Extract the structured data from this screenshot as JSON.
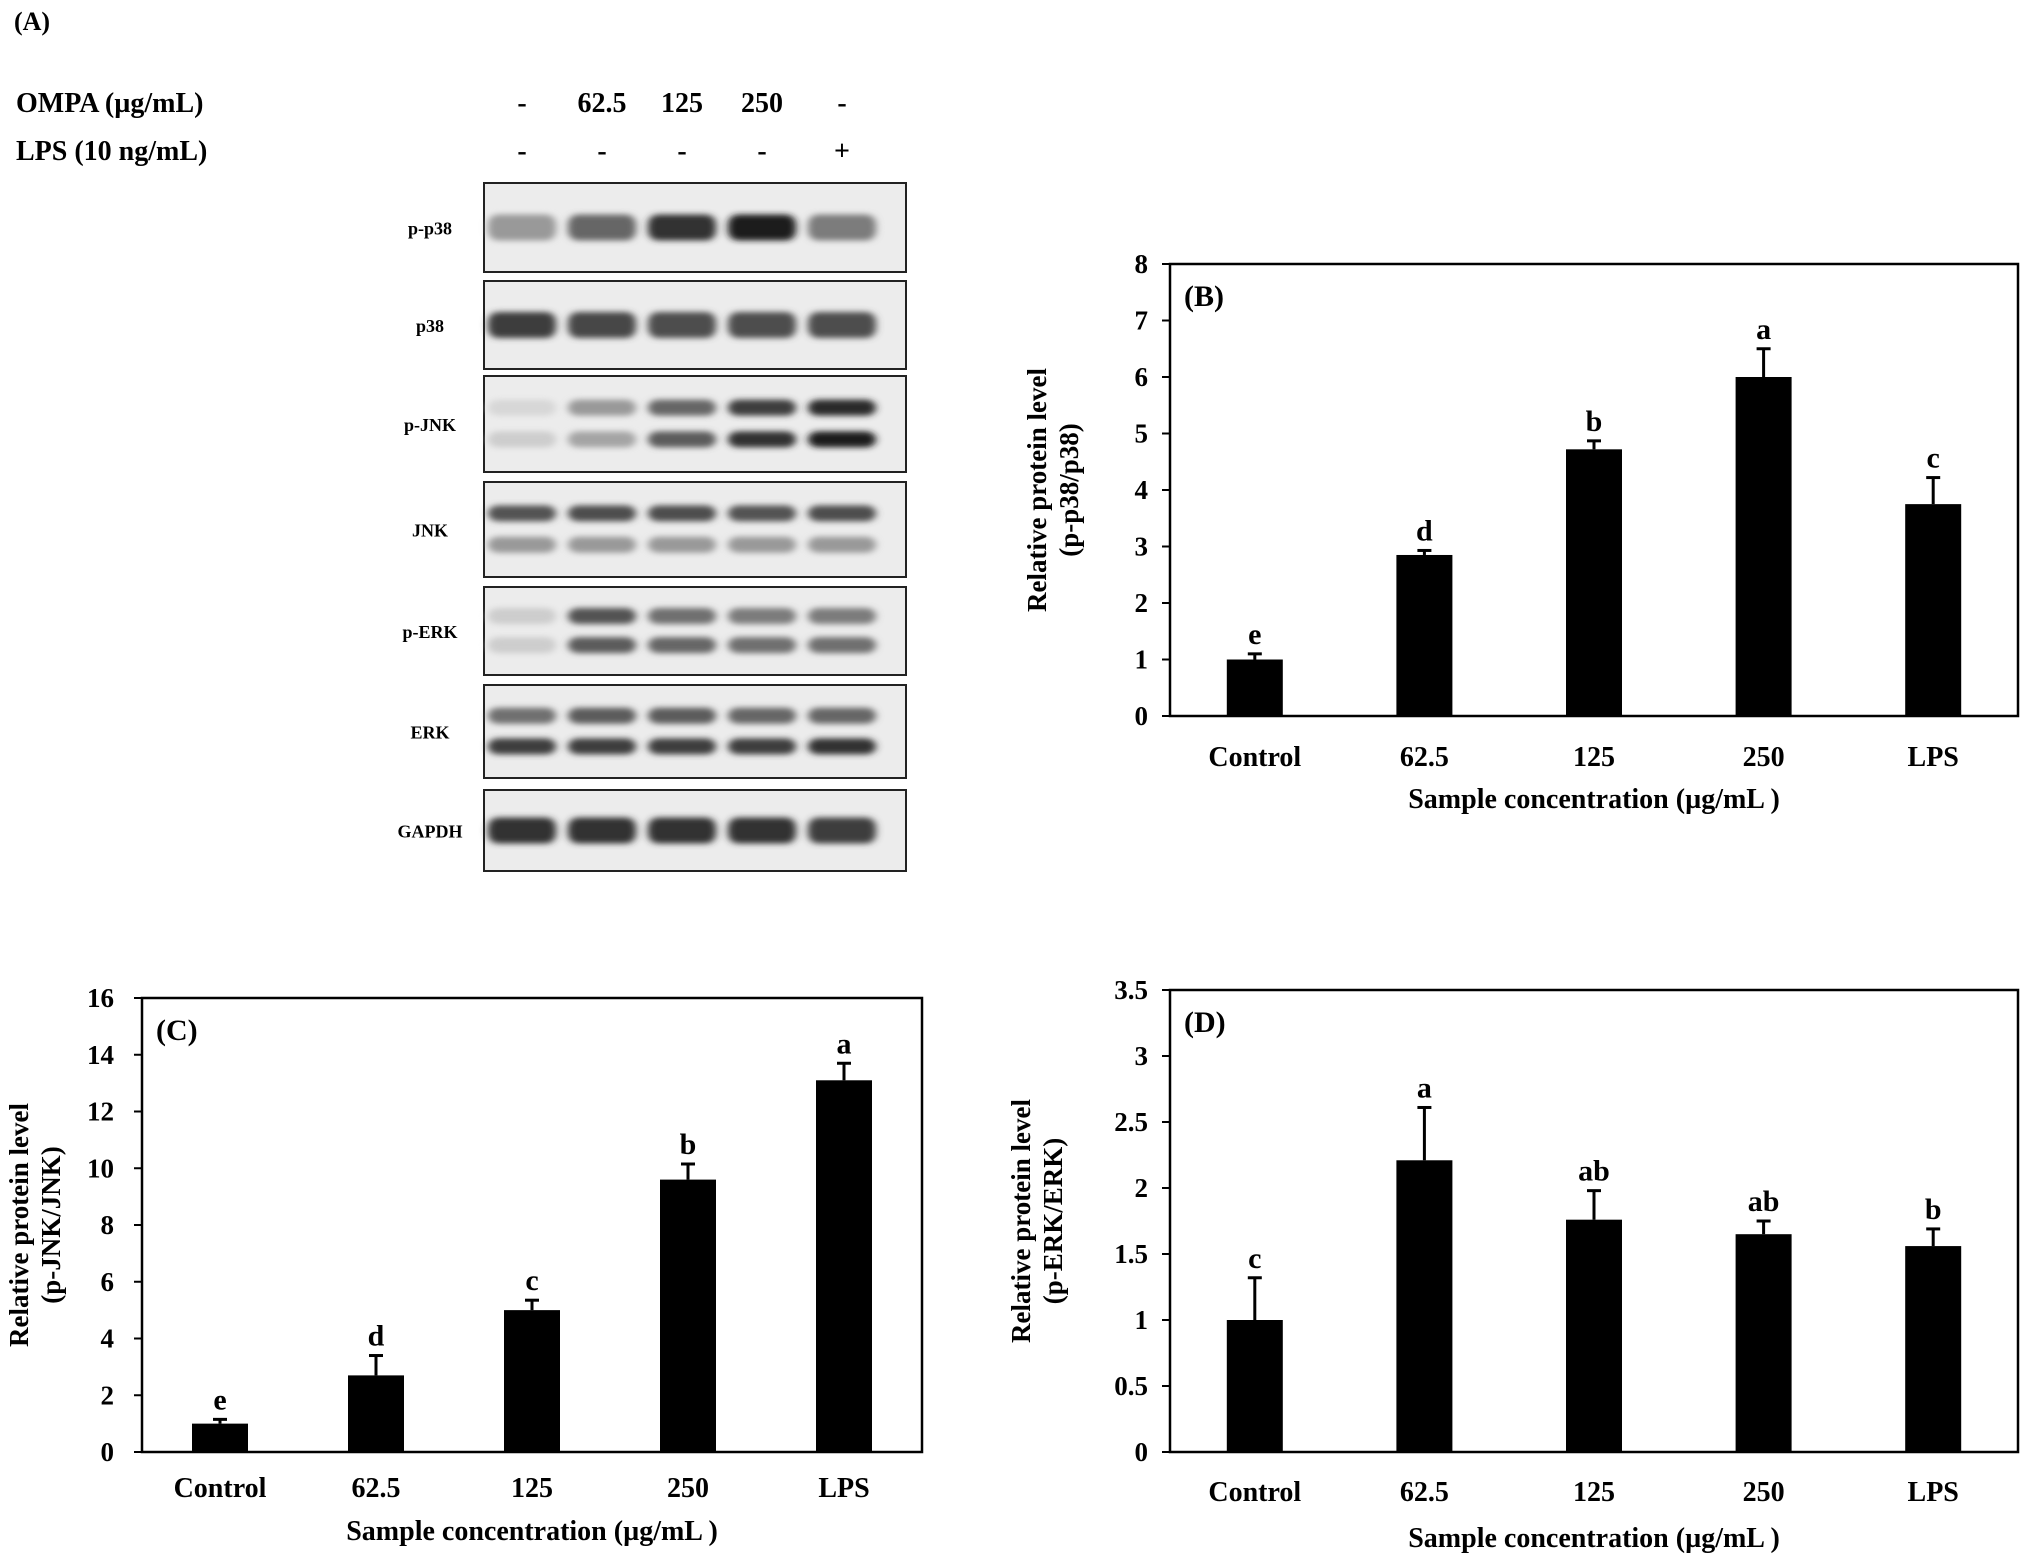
{
  "panel_a": {
    "label": "(A)",
    "row_labels": [
      "OMPA (µg/mL)",
      "LPS (10 ng/mL)"
    ],
    "ompa_values": [
      "-",
      "62.5",
      "125",
      "250",
      "-"
    ],
    "lps_values": [
      "-",
      "-",
      "-",
      "-",
      "+"
    ],
    "blots": [
      {
        "name": "p-p38",
        "bands": [
          [
            0.35,
            0.6,
            0.85,
            0.95,
            0.5
          ]
        ]
      },
      {
        "name": "p38",
        "bands": [
          [
            0.8,
            0.75,
            0.72,
            0.72,
            0.72
          ]
        ]
      },
      {
        "name": "p-JNK",
        "bands": [
          [
            0.05,
            0.35,
            0.6,
            0.8,
            0.9
          ],
          [
            0.1,
            0.3,
            0.65,
            0.85,
            0.95
          ]
        ]
      },
      {
        "name": "JNK",
        "bands": [
          [
            0.7,
            0.72,
            0.72,
            0.7,
            0.72
          ],
          [
            0.35,
            0.35,
            0.35,
            0.35,
            0.35
          ]
        ]
      },
      {
        "name": "p-ERK",
        "bands": [
          [
            0.1,
            0.7,
            0.55,
            0.5,
            0.5
          ],
          [
            0.1,
            0.65,
            0.6,
            0.55,
            0.55
          ]
        ]
      },
      {
        "name": "ERK",
        "bands": [
          [
            0.55,
            0.65,
            0.65,
            0.6,
            0.6
          ],
          [
            0.8,
            0.8,
            0.8,
            0.8,
            0.85
          ]
        ]
      },
      {
        "name": "GAPDH",
        "bands": [
          [
            0.85,
            0.85,
            0.85,
            0.85,
            0.8
          ]
        ]
      }
    ]
  },
  "chart_data": [
    {
      "panel": "(B)",
      "type": "bar",
      "categories": [
        "Control",
        "62.5",
        "125",
        "250",
        "LPS"
      ],
      "values": [
        1.0,
        2.85,
        4.72,
        6.0,
        3.75
      ],
      "errors": [
        0.1,
        0.08,
        0.15,
        0.5,
        0.47
      ],
      "labels": [
        "e",
        "d",
        "b",
        "a",
        "c"
      ],
      "xlabel": "Sample concentration (µg/mL )",
      "ylabel": [
        "Relative protein level",
        "(p-p38/p38)"
      ],
      "ylim": [
        0,
        8
      ],
      "yticks": [
        "0",
        "1",
        "2",
        "3",
        "4",
        "5",
        "6",
        "7",
        "8"
      ]
    },
    {
      "panel": "(C)",
      "type": "bar",
      "categories": [
        "Control",
        "62.5",
        "125",
        "250",
        "LPS"
      ],
      "values": [
        1.0,
        2.7,
        5.0,
        9.6,
        13.1
      ],
      "errors": [
        0.15,
        0.7,
        0.35,
        0.55,
        0.6
      ],
      "labels": [
        "e",
        "d",
        "c",
        "b",
        "a"
      ],
      "xlabel": "Sample concentration (µg/mL )",
      "ylabel": [
        "Relative protein level",
        "(p-JNK/JNK)"
      ],
      "ylim": [
        0,
        16
      ],
      "yticks": [
        "0",
        "2",
        "4",
        "6",
        "8",
        "10",
        "12",
        "14",
        "16"
      ]
    },
    {
      "panel": "(D)",
      "type": "bar",
      "categories": [
        "Control",
        "62.5",
        "125",
        "250",
        "LPS"
      ],
      "values": [
        1.0,
        2.21,
        1.76,
        1.65,
        1.56
      ],
      "errors": [
        0.32,
        0.4,
        0.22,
        0.1,
        0.13
      ],
      "labels": [
        "c",
        "a",
        "ab",
        "ab",
        "b"
      ],
      "xlabel": "Sample concentration (µg/mL )",
      "ylabel": [
        "Relative protein level",
        "(p-ERK/ERK)"
      ],
      "ylim": [
        0,
        3.5
      ],
      "yticks": [
        "0",
        "0.5",
        "1",
        "1.5",
        "2",
        "2.5",
        "3",
        "3.5"
      ]
    }
  ]
}
